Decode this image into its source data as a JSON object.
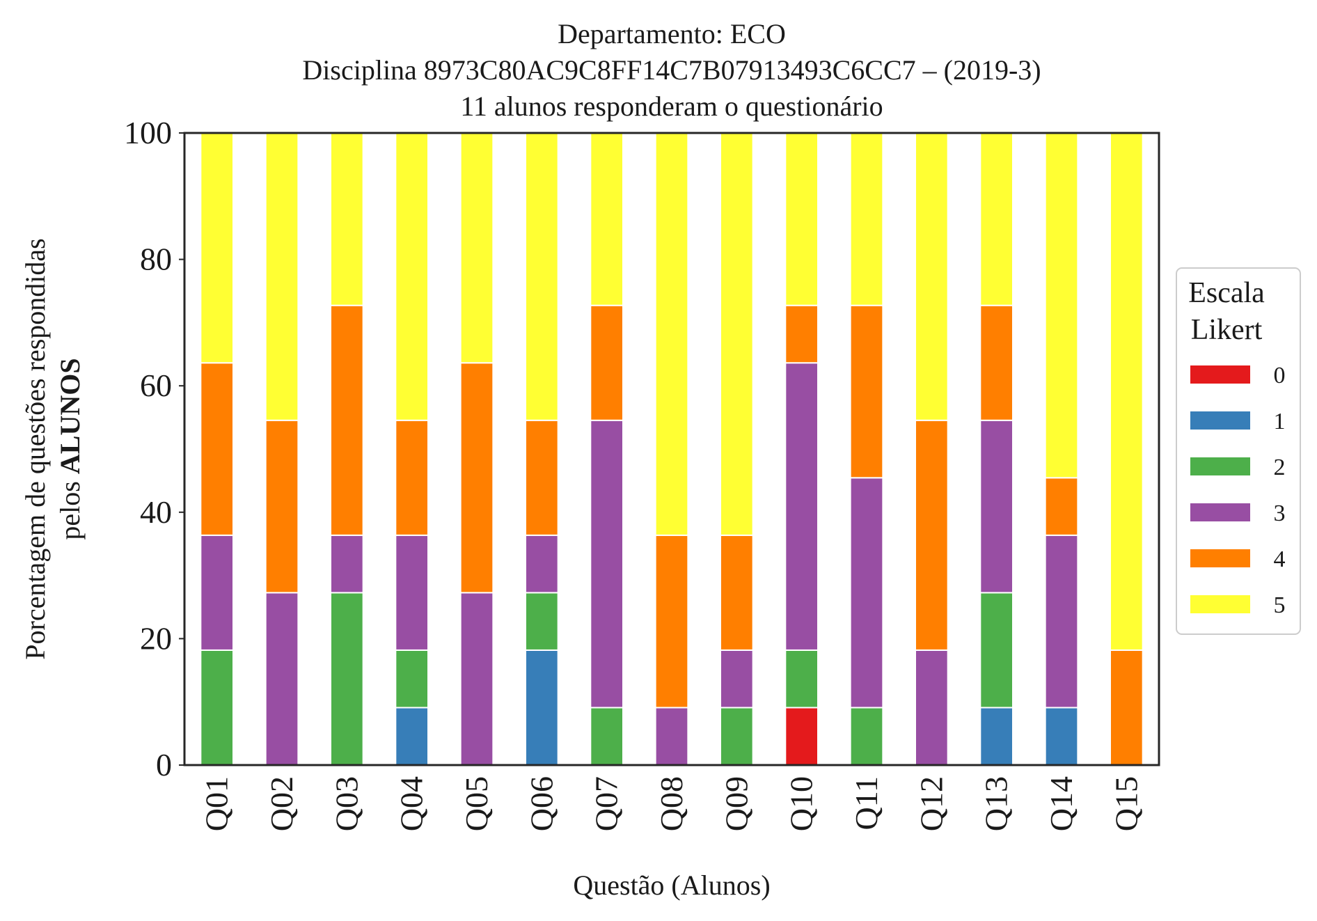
{
  "chart_data": {
    "type": "bar",
    "stacked": true,
    "title_lines": [
      "Departamento: ECO",
      "Disciplina 8973C80AC9C8FF14C7B07913493C6CC7 – (2019-3)",
      "11 alunos responderam o questionário"
    ],
    "xlabel": "Questão (Alunos)",
    "ylabel_line1": "Porcentagem de questões respondidas",
    "ylabel_line2_prefix": "pelos ",
    "ylabel_line2_bold": "ALUNOS",
    "ylim": [
      0,
      100
    ],
    "yticks": [
      "0",
      "20",
      "40",
      "60",
      "80",
      "100"
    ],
    "categories": [
      "Q01",
      "Q02",
      "Q03",
      "Q04",
      "Q05",
      "Q06",
      "Q07",
      "Q08",
      "Q09",
      "Q10",
      "Q11",
      "Q12",
      "Q13",
      "Q14",
      "Q15"
    ],
    "legend": {
      "title_line1": "Escala",
      "title_line2": "Likert",
      "placement": "right"
    },
    "series": [
      {
        "name": "0",
        "color": "#e41a1c",
        "values": [
          0,
          0,
          0,
          0,
          0,
          0,
          0,
          0,
          0,
          9.09,
          0,
          0,
          0,
          0,
          0
        ]
      },
      {
        "name": "1",
        "color": "#377eb8",
        "values": [
          0,
          0,
          0,
          9.09,
          0,
          18.18,
          0,
          0,
          0,
          0,
          0,
          0,
          9.09,
          9.09,
          0
        ]
      },
      {
        "name": "2",
        "color": "#4daf4a",
        "values": [
          18.18,
          0,
          27.27,
          9.09,
          0,
          9.09,
          9.09,
          0,
          9.09,
          9.09,
          9.09,
          0,
          18.18,
          0,
          0
        ]
      },
      {
        "name": "3",
        "color": "#984ea3",
        "values": [
          18.18,
          27.27,
          9.09,
          18.18,
          27.27,
          9.09,
          45.45,
          9.09,
          9.09,
          45.45,
          36.36,
          18.18,
          27.27,
          27.27,
          0
        ]
      },
      {
        "name": "4",
        "color": "#ff7f00",
        "values": [
          27.27,
          27.27,
          36.36,
          18.18,
          36.36,
          18.18,
          18.18,
          27.27,
          18.18,
          9.09,
          27.27,
          36.36,
          18.18,
          9.09,
          18.18
        ]
      },
      {
        "name": "5",
        "color": "#ffff33",
        "values": [
          36.36,
          45.45,
          27.27,
          45.45,
          36.36,
          45.45,
          27.27,
          63.64,
          63.64,
          27.27,
          27.27,
          45.45,
          27.27,
          54.55,
          81.82
        ]
      }
    ]
  }
}
